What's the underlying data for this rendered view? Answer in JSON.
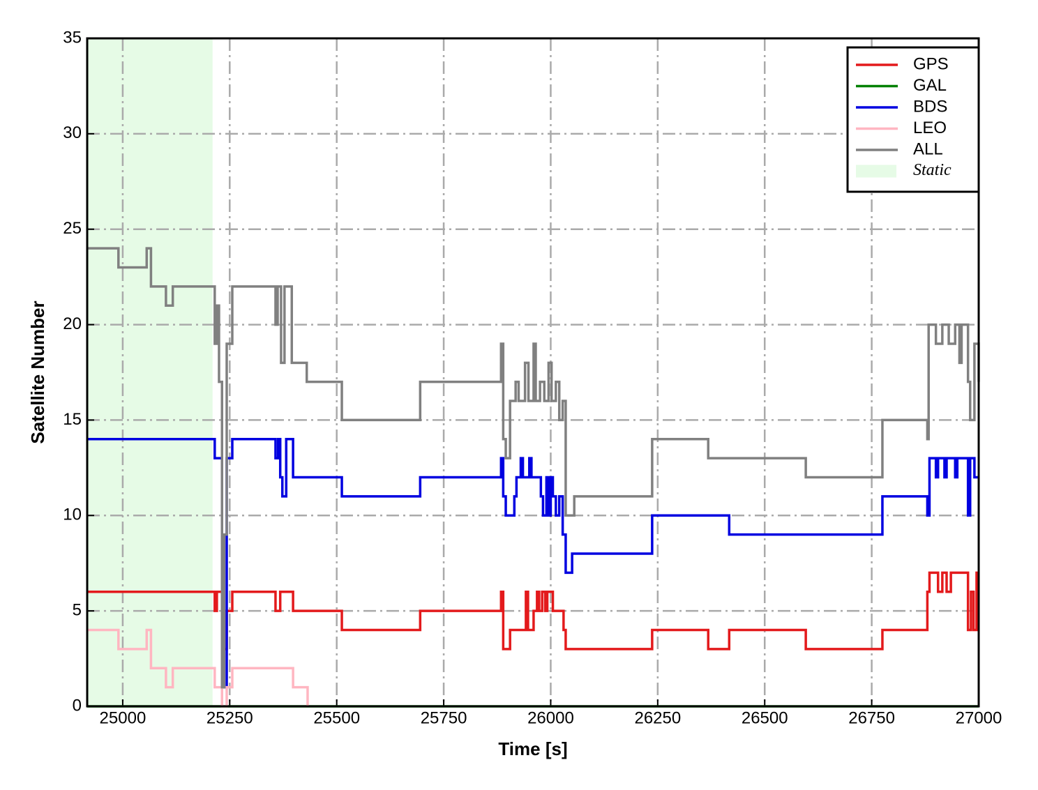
{
  "chart_data": {
    "type": "line",
    "xlabel": "Time [s]",
    "ylabel": "Satellite Number",
    "xlim": [
      24917,
      27000
    ],
    "ylim": [
      0,
      35
    ],
    "xticks": [
      25000,
      25250,
      25500,
      25750,
      26000,
      26250,
      26500,
      26750,
      27000
    ],
    "yticks": [
      0,
      5,
      10,
      15,
      20,
      25,
      30,
      35
    ],
    "grid": true,
    "legend": "upper right",
    "step": true,
    "shaded_regions": [
      {
        "name": "Static",
        "color": "#e6fbe6",
        "x": [
          24917,
          25210
        ]
      }
    ],
    "series": [
      {
        "name": "GPS",
        "color": "#e31a1c",
        "x": [
          24917,
          25215,
          25220,
          25232,
          25243,
          25256,
          25357,
          25368,
          25375,
          25398,
          25512,
          25695,
          25884,
          25889,
          25905,
          25935,
          25942,
          25947,
          25960,
          25968,
          25973,
          25980,
          25987,
          25992,
          26000,
          26005,
          26030,
          26035,
          26237,
          26368,
          26417,
          26596,
          26775,
          26880,
          26885,
          26890,
          26905,
          26915,
          26925,
          26935,
          26950,
          26975,
          26982,
          26988,
          26995,
          27000
        ],
        "values": [
          6,
          5,
          6,
          3,
          5,
          6,
          5,
          6,
          6,
          5,
          4,
          5,
          6,
          3,
          4,
          4,
          6,
          4,
          5,
          6,
          5,
          6,
          5,
          6,
          6,
          5,
          4,
          3,
          4,
          3,
          4,
          3,
          4,
          6,
          7,
          7,
          6,
          7,
          6,
          7,
          7,
          4,
          6,
          4,
          7,
          7
        ]
      },
      {
        "name": "GAL",
        "color": "#008000",
        "x": [
          24917,
          27000
        ],
        "values": [
          0,
          0
        ]
      },
      {
        "name": "BDS",
        "color": "#0000e0",
        "x": [
          24917,
          25215,
          25232,
          25243,
          25256,
          25357,
          25363,
          25368,
          25373,
          25382,
          25398,
          25512,
          25695,
          25884,
          25889,
          25895,
          25915,
          25920,
          25930,
          25935,
          25950,
          25955,
          25977,
          25982,
          25990,
          25995,
          26000,
          26005,
          26012,
          26020,
          26028,
          26035,
          26050,
          26237,
          26417,
          26775,
          26880,
          26885,
          26900,
          26905,
          26920,
          26925,
          26945,
          26950,
          26960,
          26975,
          26980,
          26990,
          27000
        ],
        "values": [
          14,
          13,
          1,
          13,
          14,
          13,
          14,
          12,
          11,
          14,
          12,
          11,
          12,
          13,
          11,
          10,
          11,
          12,
          13,
          12,
          13,
          12,
          11,
          10,
          12,
          10,
          12,
          11,
          10,
          11,
          9,
          7,
          8,
          10,
          9,
          11,
          10,
          13,
          12,
          13,
          12,
          13,
          12,
          13,
          13,
          10,
          13,
          12,
          12
        ]
      },
      {
        "name": "LEO",
        "color": "#ffb6c1",
        "x": [
          24917,
          24990,
          25056,
          25066,
          25101,
          25117,
          25215,
          25232,
          25243,
          25256,
          25398,
          25432
        ],
        "values": [
          4,
          3,
          4,
          2,
          1,
          2,
          1,
          0,
          1,
          2,
          1,
          0
        ]
      },
      {
        "name": "ALL",
        "color": "#808080",
        "x": [
          24917,
          24990,
          25056,
          25066,
          25101,
          25117,
          25215,
          25220,
          25225,
          25232,
          25237,
          25243,
          25256,
          25357,
          25362,
          25370,
          25378,
          25395,
          25430,
          25512,
          25695,
          25884,
          25889,
          25895,
          25905,
          25918,
          25925,
          25940,
          25948,
          25960,
          25965,
          25975,
          25985,
          25995,
          26002,
          26012,
          26020,
          26028,
          26035,
          26055,
          26237,
          26368,
          26596,
          26775,
          26880,
          26883,
          26900,
          26915,
          26930,
          26945,
          26955,
          26960,
          26975,
          26980,
          26990,
          27000
        ],
        "values": [
          24,
          23,
          24,
          22,
          21,
          22,
          19,
          21,
          17,
          1,
          9,
          19,
          22,
          20,
          22,
          18,
          22,
          18,
          17,
          15,
          17,
          19,
          14,
          13,
          16,
          17,
          16,
          18,
          16,
          19,
          16,
          17,
          16,
          18,
          16,
          17,
          15,
          16,
          10,
          11,
          14,
          13,
          12,
          15,
          14,
          20,
          19,
          20,
          19,
          20,
          18,
          20,
          17,
          15,
          19,
          17
        ]
      }
    ]
  }
}
